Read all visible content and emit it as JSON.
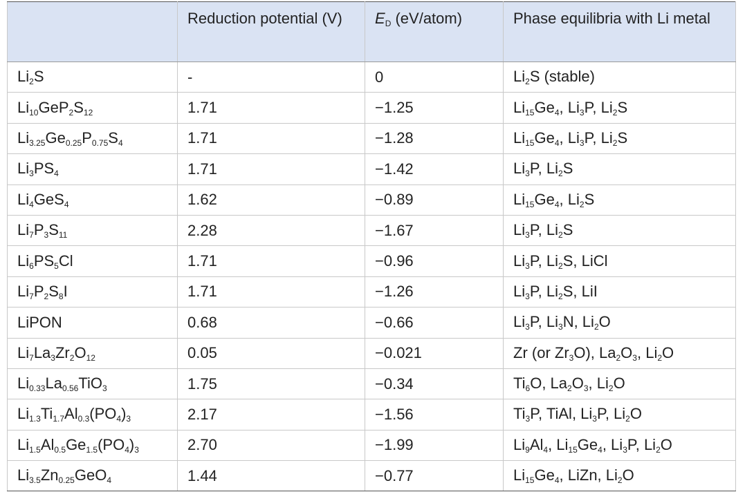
{
  "table": {
    "header": [
      [
        "Reduction potential (V)"
      ],
      [
        "E",
        "D",
        " (eV/atom)"
      ],
      [
        "Phase equilibria with Li metal"
      ]
    ],
    "rows": [
      [
        [
          "Li",
          "2",
          "S"
        ],
        "-",
        "0",
        [
          "Li",
          "2",
          "S (stable)"
        ]
      ],
      [
        [
          "Li",
          "10",
          "GeP",
          "2",
          "S",
          "12"
        ],
        "1.71",
        "−1.25",
        [
          "Li",
          "15",
          "Ge",
          "4",
          ", Li",
          "3",
          "P, Li",
          "2",
          "S"
        ]
      ],
      [
        [
          "Li",
          "3.25",
          "Ge",
          "0.25",
          "P",
          "0.75",
          "S",
          "4"
        ],
        "1.71",
        "−1.28",
        [
          "Li",
          "15",
          "Ge",
          "4",
          ", Li",
          "3",
          "P, Li",
          "2",
          "S"
        ]
      ],
      [
        [
          "Li",
          "3",
          "PS",
          "4"
        ],
        "1.71",
        "−1.42",
        [
          "Li",
          "3",
          "P, Li",
          "2",
          "S"
        ]
      ],
      [
        [
          "Li",
          "4",
          "GeS",
          "4"
        ],
        "1.62",
        "−0.89",
        [
          "Li",
          "15",
          "Ge",
          "4",
          ", Li",
          "2",
          "S"
        ]
      ],
      [
        [
          "Li",
          "7",
          "P",
          "3",
          "S",
          "11"
        ],
        "2.28",
        "−1.67",
        [
          "Li",
          "3",
          "P, Li",
          "2",
          "S"
        ]
      ],
      [
        [
          "Li",
          "6",
          "PS",
          "5",
          "Cl"
        ],
        "1.71",
        "−0.96",
        [
          "Li",
          "3",
          "P, Li",
          "2",
          "S, LiCl"
        ]
      ],
      [
        [
          "Li",
          "7",
          "P",
          "2",
          "S",
          "8",
          "I"
        ],
        "1.71",
        "−1.26",
        [
          "Li",
          "3",
          "P, Li",
          "2",
          "S, LiI"
        ]
      ],
      [
        [
          "LiPON"
        ],
        "0.68",
        "−0.66",
        [
          "Li",
          "3",
          "P, Li",
          "3",
          "N, Li",
          "2",
          "O"
        ]
      ],
      [
        [
          "Li",
          "7",
          "La",
          "3",
          "Zr",
          "2",
          "O",
          "12"
        ],
        "0.05",
        "−0.021",
        [
          "Zr (or Zr",
          "3",
          "O), La",
          "2",
          "O",
          "3",
          ", Li",
          "2",
          "O"
        ]
      ],
      [
        [
          "Li",
          "0.33",
          "La",
          "0.56",
          "TiO",
          "3"
        ],
        "1.75",
        "−0.34",
        [
          "Ti",
          "6",
          "O, La",
          "2",
          "O",
          "3",
          ", Li",
          "2",
          "O"
        ]
      ],
      [
        [
          "Li",
          "1.3",
          "Ti",
          "1.7",
          "Al",
          "0.3",
          "(PO",
          "4",
          ")",
          "3"
        ],
        "2.17",
        "−1.56",
        [
          "Ti",
          "3",
          "P, TiAl, Li",
          "3",
          "P, Li",
          "2",
          "O"
        ]
      ],
      [
        [
          "Li",
          "1.5",
          "Al",
          "0.5",
          "Ge",
          "1.5",
          "(PO",
          "4",
          ")",
          "3"
        ],
        "2.70",
        "−1.99",
        [
          "Li",
          "9",
          "Al",
          "4",
          ", Li",
          "15",
          "Ge",
          "4",
          ", Li",
          "3",
          "P, Li",
          "2",
          "O"
        ]
      ],
      [
        [
          "Li",
          "3.5",
          "Zn",
          "0.25",
          "GeO",
          "4"
        ],
        "1.44",
        "−0.77",
        [
          "Li",
          "15",
          "Ge",
          "4",
          ", LiZn, Li",
          "2",
          "O"
        ]
      ]
    ]
  }
}
